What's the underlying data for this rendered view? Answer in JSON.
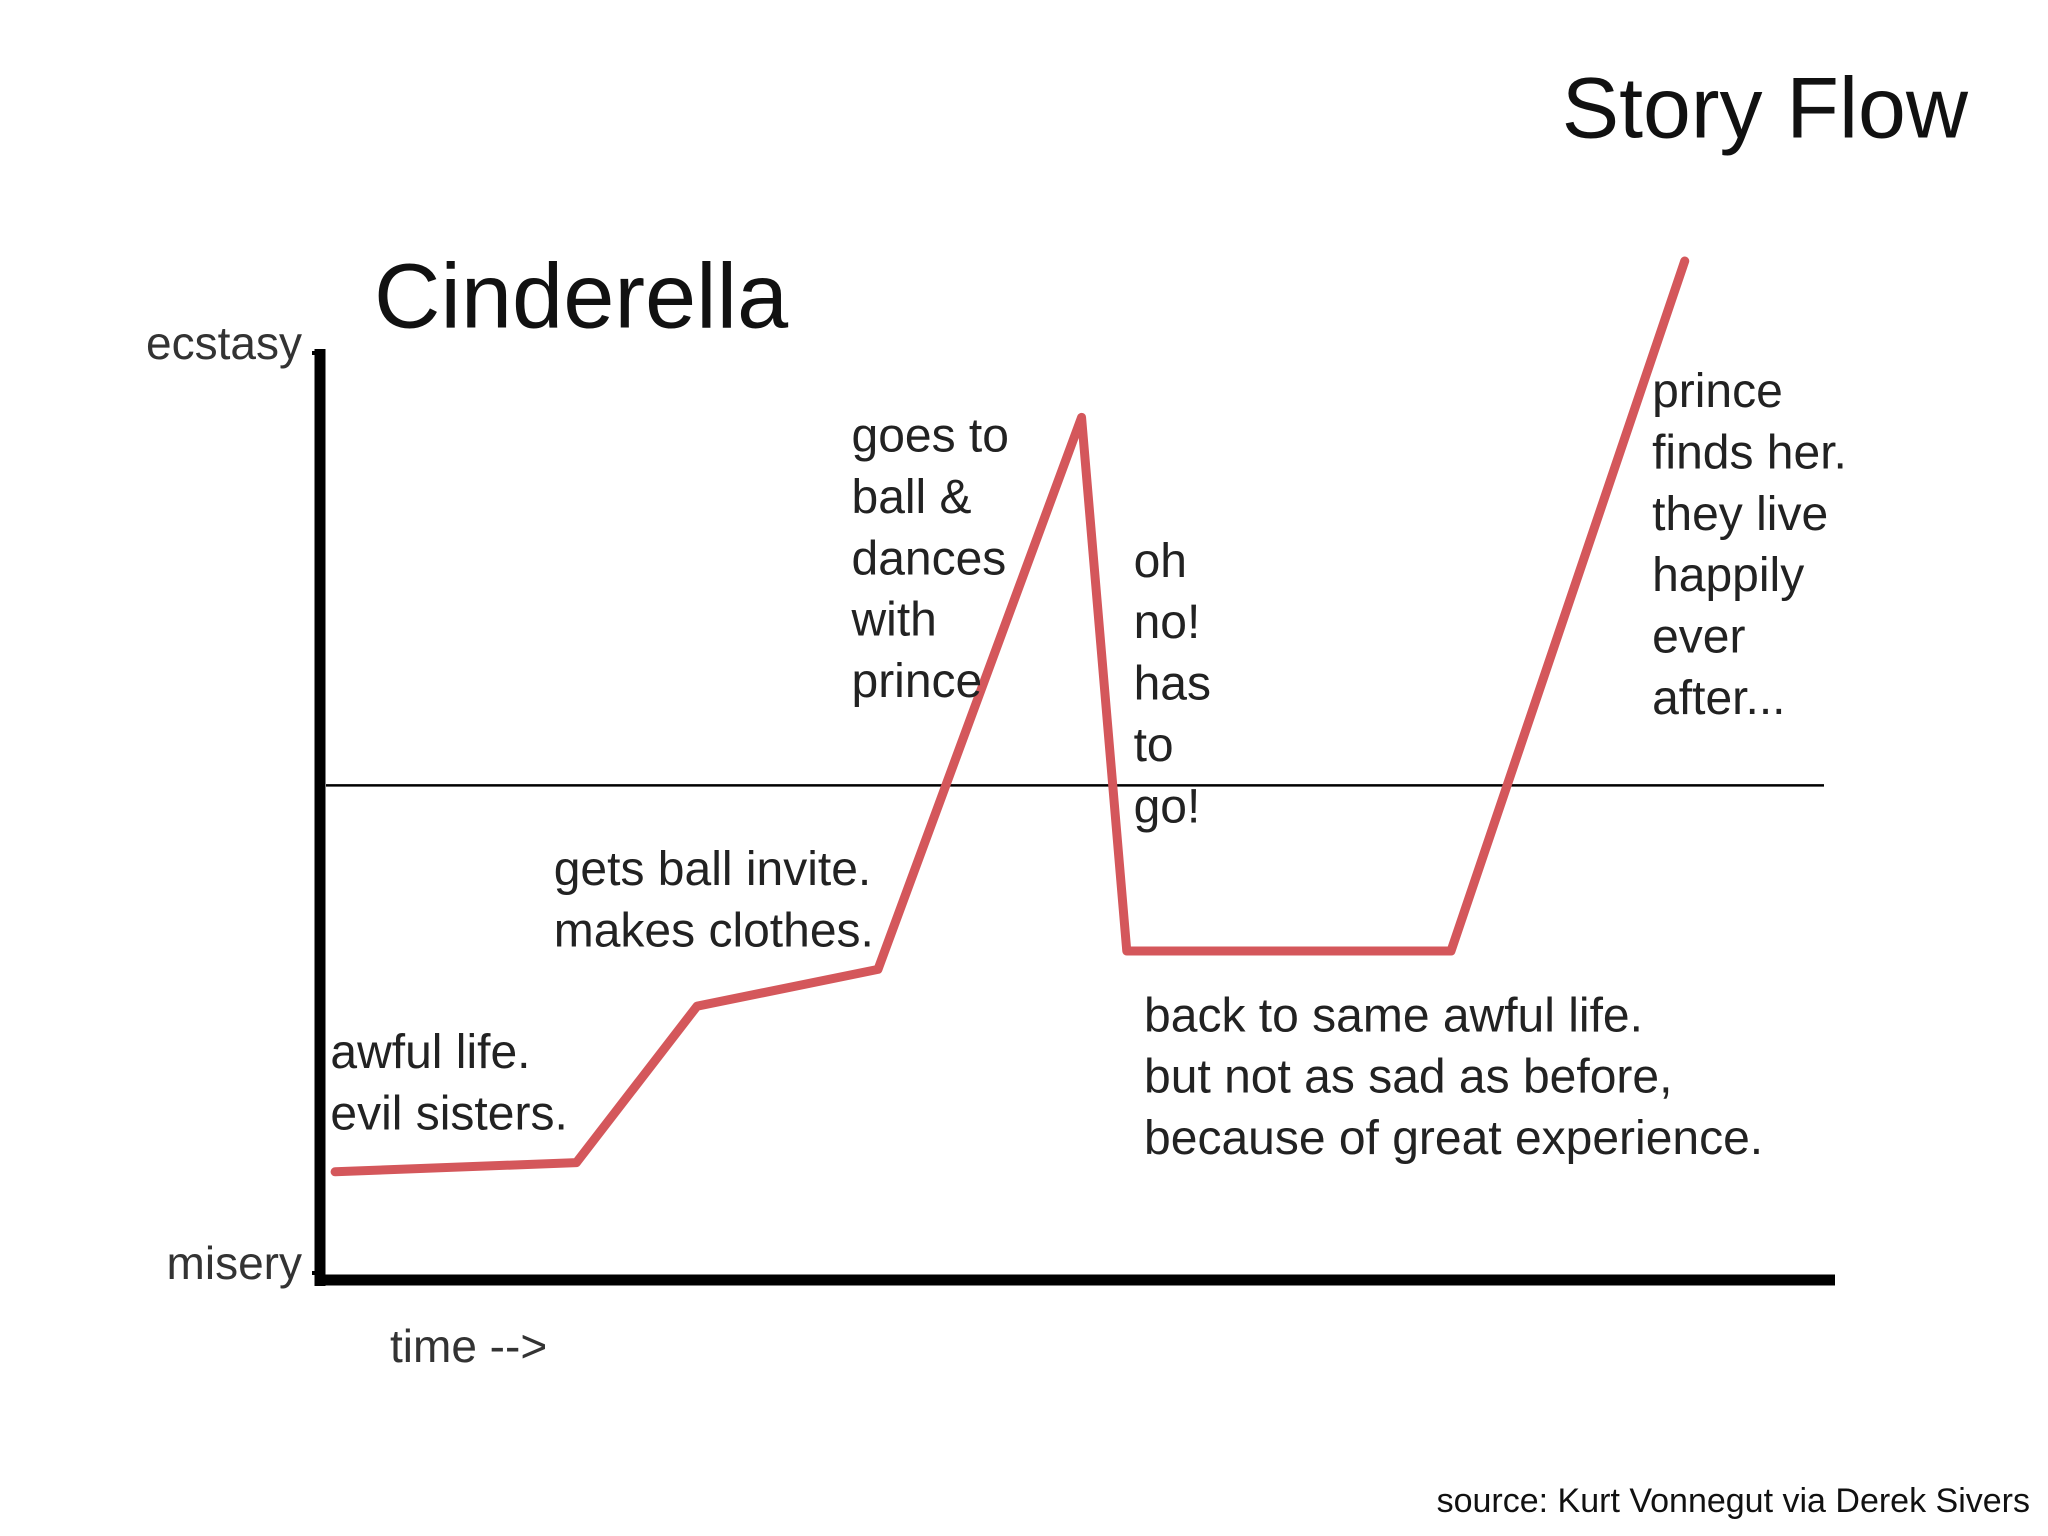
{
  "chart_data": {
    "type": "line",
    "page_title": "Story Flow",
    "title": "Cinderella",
    "x_label": "time -->",
    "source": "source: Kurt Vonnegut via Derek Sivers",
    "x": [
      1,
      17,
      25,
      37,
      50.5,
      53.5,
      75,
      90.5
    ],
    "series": [
      {
        "color": "#d4575b",
        "values": [
          11,
          12,
          29,
          33,
          93,
          35,
          35,
          110
        ]
      }
    ],
    "xlim": [
      0,
      100
    ],
    "ylim": [
      0,
      100
    ],
    "yticks": [
      {
        "value": 0,
        "label": "misery"
      },
      {
        "value": 100,
        "label": "ecstasy"
      }
    ],
    "baseline": 53,
    "annotations": [
      [
        "awful life.",
        "evil sisters."
      ],
      [
        "gets ball invite.",
        "makes clothes."
      ],
      [
        "goes to",
        "ball &",
        "dances",
        "with",
        "prince"
      ],
      [
        "oh",
        "no!",
        "has",
        "to",
        "go!"
      ],
      [
        "back to same awful life.",
        "but not as sad as before,",
        "because of great experience."
      ],
      [
        "prince",
        "finds her.",
        "they live",
        "happily",
        "ever",
        "after..."
      ]
    ]
  }
}
